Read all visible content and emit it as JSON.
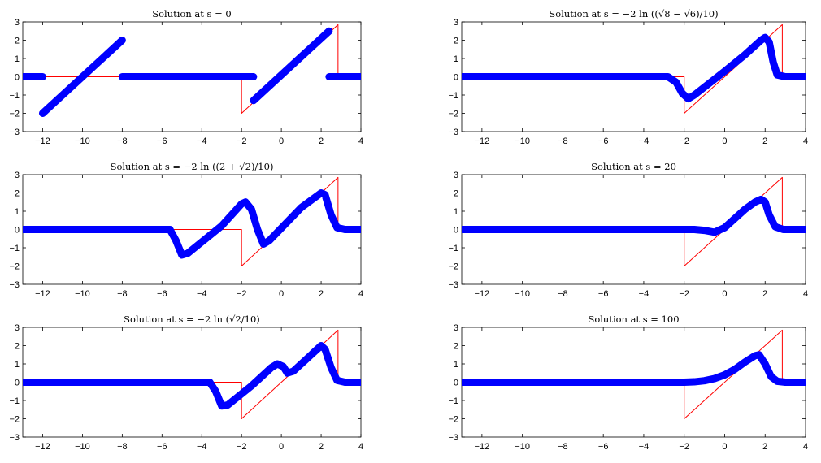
{
  "chart_data": [
    {
      "type": "line",
      "title": "Solution at s = 0",
      "xlim": [
        -13,
        4
      ],
      "ylim": [
        -3,
        3
      ],
      "xticks": [
        -12,
        -10,
        -8,
        -6,
        -4,
        -2,
        0,
        2,
        4
      ],
      "yticks": [
        -3,
        -2,
        -1,
        0,
        1,
        2,
        3
      ],
      "series": [
        {
          "color": "#ff0000",
          "x": [
            -13,
            -2,
            -2,
            2.85,
            2.85,
            4
          ],
          "y": [
            0,
            0,
            -2,
            2.85,
            0,
            0
          ]
        },
        {
          "color": "#0000ff",
          "segments": [
            {
              "x": [
                -13,
                -12
              ],
              "y": [
                0,
                0
              ]
            },
            {
              "x": [
                -12,
                -8
              ],
              "y": [
                -2,
                2
              ]
            },
            {
              "x": [
                -8,
                -1.4
              ],
              "y": [
                0,
                0
              ]
            },
            {
              "x": [
                -1.4,
                2.4
              ],
              "y": [
                -1.3,
                2.5
              ]
            },
            {
              "x": [
                2.4,
                4
              ],
              "y": [
                0,
                0
              ]
            }
          ]
        }
      ]
    },
    {
      "type": "line",
      "title": "Solution at s = −2 ln ((√8 − √6)/10)",
      "xlim": [
        -13,
        4
      ],
      "ylim": [
        -3,
        3
      ],
      "xticks": [
        -12,
        -10,
        -8,
        -6,
        -4,
        -2,
        0,
        2,
        4
      ],
      "yticks": [
        -3,
        -2,
        -1,
        0,
        1,
        2,
        3
      ],
      "series": [
        {
          "color": "#ff0000",
          "x": [
            -13,
            -2,
            -2,
            2.85,
            2.85,
            4
          ],
          "y": [
            0,
            0,
            -2,
            2.85,
            0,
            0
          ]
        },
        {
          "color": "#0000ff",
          "x": [
            -13,
            -2.8,
            -2.4,
            -2.1,
            -1.8,
            -1.5,
            0,
            1,
            1.8,
            2,
            2.2,
            2.4,
            2.6,
            3,
            4
          ],
          "y": [
            0,
            0,
            -0.3,
            -0.9,
            -1.2,
            -1.0,
            0.3,
            1.2,
            2.0,
            2.15,
            1.9,
            0.8,
            0.1,
            0,
            0
          ]
        }
      ]
    },
    {
      "type": "line",
      "title": "Solution at s = −2 ln ((2 + √2)/10)",
      "xlim": [
        -13,
        4
      ],
      "ylim": [
        -3,
        3
      ],
      "xticks": [
        -12,
        -10,
        -8,
        -6,
        -4,
        -2,
        0,
        2,
        4
      ],
      "yticks": [
        -3,
        -2,
        -1,
        0,
        1,
        2,
        3
      ],
      "series": [
        {
          "color": "#ff0000",
          "x": [
            -13,
            -2,
            -2,
            2.85,
            2.85,
            4
          ],
          "y": [
            0,
            0,
            -2,
            2.85,
            0,
            0
          ]
        },
        {
          "color": "#0000ff",
          "x": [
            -13,
            -5.6,
            -5.3,
            -5.0,
            -4.7,
            -3,
            -2,
            -1.8,
            -1.5,
            -1.2,
            -0.9,
            -0.6,
            1,
            2,
            2.2,
            2.5,
            2.8,
            3.2,
            4
          ],
          "y": [
            0,
            0,
            -0.6,
            -1.4,
            -1.3,
            0.2,
            1.4,
            1.5,
            1.1,
            0,
            -0.8,
            -0.6,
            1.2,
            2.0,
            1.9,
            0.8,
            0.1,
            0,
            0
          ]
        }
      ]
    },
    {
      "type": "line",
      "title": "Solution at s = 20",
      "xlim": [
        -13,
        4
      ],
      "ylim": [
        -3,
        3
      ],
      "xticks": [
        -12,
        -10,
        -8,
        -6,
        -4,
        -2,
        0,
        2,
        4
      ],
      "yticks": [
        -3,
        -2,
        -1,
        0,
        1,
        2,
        3
      ],
      "series": [
        {
          "color": "#ff0000",
          "x": [
            -13,
            -2,
            -2,
            2.85,
            2.85,
            4
          ],
          "y": [
            0,
            0,
            -2,
            2.85,
            0,
            0
          ]
        },
        {
          "color": "#0000ff",
          "x": [
            -13,
            -1.5,
            -1,
            -0.5,
            0,
            0.5,
            1,
            1.5,
            1.8,
            2.0,
            2.2,
            2.5,
            2.9,
            4
          ],
          "y": [
            0,
            0,
            -0.05,
            -0.15,
            0.1,
            0.6,
            1.1,
            1.5,
            1.65,
            1.5,
            0.8,
            0.15,
            0,
            0
          ]
        }
      ]
    },
    {
      "type": "line",
      "title": "Solution at s = −2 ln (√2/10)",
      "xlim": [
        -13,
        4
      ],
      "ylim": [
        -3,
        3
      ],
      "xticks": [
        -12,
        -10,
        -8,
        -6,
        -4,
        -2,
        0,
        2,
        4
      ],
      "yticks": [
        -3,
        -2,
        -1,
        0,
        1,
        2,
        3
      ],
      "series": [
        {
          "color": "#ff0000",
          "x": [
            -13,
            -2,
            -2,
            2.85,
            2.85,
            4
          ],
          "y": [
            0,
            0,
            -2,
            2.85,
            0,
            0
          ]
        },
        {
          "color": "#0000ff",
          "x": [
            -13,
            -3.6,
            -3.3,
            -3.0,
            -2.7,
            -1.5,
            -0.5,
            -0.2,
            0.1,
            0.3,
            0.6,
            1.5,
            2,
            2.2,
            2.5,
            2.8,
            3.2,
            4
          ],
          "y": [
            0,
            0,
            -0.5,
            -1.3,
            -1.25,
            -0.2,
            0.8,
            1.0,
            0.85,
            0.5,
            0.6,
            1.5,
            2.0,
            1.8,
            0.8,
            0.1,
            0,
            0
          ]
        }
      ]
    },
    {
      "type": "line",
      "title": "Solution at s = 100",
      "xlim": [
        -13,
        4
      ],
      "ylim": [
        -3,
        3
      ],
      "xticks": [
        -12,
        -10,
        -8,
        -6,
        -4,
        -2,
        0,
        2,
        4
      ],
      "yticks": [
        -3,
        -2,
        -1,
        0,
        1,
        2,
        3
      ],
      "series": [
        {
          "color": "#ff0000",
          "x": [
            -13,
            -2,
            -2,
            2.85,
            2.85,
            4
          ],
          "y": [
            0,
            0,
            -2,
            2.85,
            0,
            0
          ]
        },
        {
          "color": "#0000ff",
          "x": [
            -13,
            -2,
            -1.5,
            -1,
            -0.5,
            0,
            0.5,
            1,
            1.5,
            1.7,
            2.0,
            2.3,
            2.6,
            3,
            4
          ],
          "y": [
            0,
            0,
            0.02,
            0.08,
            0.2,
            0.4,
            0.7,
            1.1,
            1.45,
            1.5,
            1.0,
            0.3,
            0.05,
            0,
            0
          ]
        }
      ]
    }
  ]
}
